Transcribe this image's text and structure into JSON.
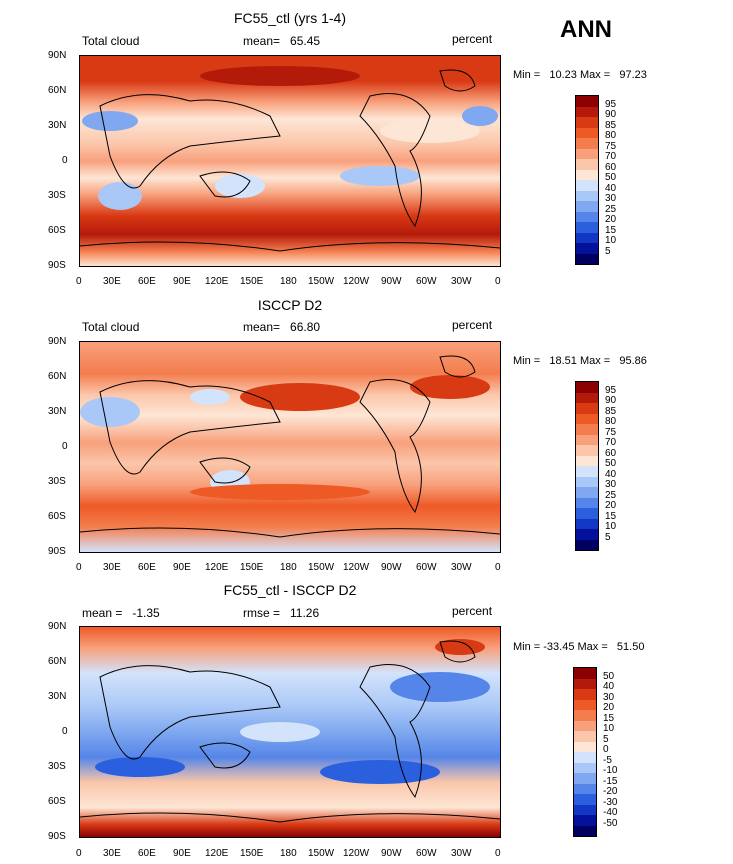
{
  "header": {
    "season": "ANN"
  },
  "panels": [
    {
      "title": "FC55_ctl (yrs 1-4)",
      "left_label": "Total cloud",
      "center_label": "mean=   65.45",
      "right_label": "percent",
      "minmax": "Min =   10.23 Max =   97.23",
      "colorbar_labels": [
        "95",
        "90",
        "85",
        "80",
        "75",
        "70",
        "60",
        "50",
        "40",
        "30",
        "25",
        "20",
        "15",
        "10",
        "5"
      ],
      "colorbar_colors": [
        "#8b0000",
        "#b41a0a",
        "#d83a14",
        "#ee5a26",
        "#f47d4d",
        "#f8a07c",
        "#fbc6aa",
        "#fde6d5",
        "#d3e3fb",
        "#aac8f7",
        "#7fa8f0",
        "#5585e8",
        "#2a5fdd",
        "#1237c4",
        "#04119a",
        "#000060"
      ]
    },
    {
      "title": "ISCCP D2",
      "left_label": "Total cloud",
      "center_label": "mean=   66.80",
      "right_label": "percent",
      "minmax": "Min =   18.51 Max =   95.86",
      "colorbar_labels": [
        "95",
        "90",
        "85",
        "80",
        "75",
        "70",
        "60",
        "50",
        "40",
        "30",
        "25",
        "20",
        "15",
        "10",
        "5"
      ],
      "colorbar_colors": [
        "#8b0000",
        "#b41a0a",
        "#d83a14",
        "#ee5a26",
        "#f47d4d",
        "#f8a07c",
        "#fbc6aa",
        "#fde6d5",
        "#d3e3fb",
        "#aac8f7",
        "#7fa8f0",
        "#5585e8",
        "#2a5fdd",
        "#1237c4",
        "#04119a",
        "#000060"
      ]
    },
    {
      "title": "FC55_ctl - ISCCP D2",
      "left_label": "mean =   -1.35",
      "center_label": "rmse =   11.26",
      "right_label": "percent",
      "minmax": "Min = -33.45 Max =   51.50",
      "colorbar_labels": [
        "50",
        "40",
        "30",
        "20",
        "15",
        "10",
        "5",
        "0",
        "-5",
        "-10",
        "-15",
        "-20",
        "-30",
        "-40",
        "-50"
      ],
      "colorbar_colors": [
        "#8b0000",
        "#b41a0a",
        "#d83a14",
        "#ee5a26",
        "#f47d4d",
        "#f8a07c",
        "#fbc6aa",
        "#fde6d5",
        "#d3e3fb",
        "#aac8f7",
        "#7fa8f0",
        "#5585e8",
        "#2a5fdd",
        "#1237c4",
        "#04119a",
        "#000060"
      ]
    }
  ],
  "lat_ticks": [
    "90N",
    "60N",
    "30N",
    "0",
    "30S",
    "60S",
    "90S"
  ],
  "lon_ticks": [
    "0",
    "30E",
    "60E",
    "90E",
    "120E",
    "150E",
    "180",
    "150W",
    "120W",
    "90W",
    "60W",
    "30W",
    "0"
  ]
}
